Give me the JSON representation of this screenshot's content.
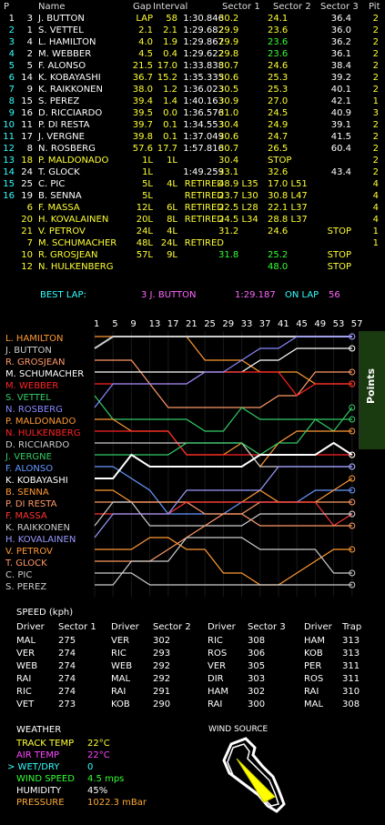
{
  "timing": {
    "headers": {
      "p": "P",
      "name": "Name",
      "gap": "Gap",
      "interval": "Interval",
      "s1": "Sector 1",
      "s2": "Sector 2",
      "s3": "Sector 3",
      "pit": "Pit"
    },
    "rows": [
      {
        "p": "1",
        "num": "3",
        "name": "J. BUTTON",
        "gap": "LAP",
        "int": "58",
        "lap": "1:30.846",
        "s1": "30.2",
        "s2": "24.1",
        "s3": "36.4",
        "pit": "2",
        "c": {
          "p": "white",
          "name": "white",
          "gap": "yellow",
          "int": "yellow",
          "lap": "white",
          "s1": "yellow",
          "s2": "yellow",
          "s3": "white",
          "pit": "yellow"
        }
      },
      {
        "p": "2",
        "num": "1",
        "name": "S. VETTEL",
        "gap": "2.1",
        "int": "2.1",
        "lap": "1:29.682",
        "s1": "29.9",
        "s2": "23.6",
        "s3": "36.0",
        "pit": "2",
        "c": {
          "p": "cyan",
          "name": "white",
          "gap": "yellow",
          "int": "yellow",
          "lap": "white",
          "s1": "yellow",
          "s2": "yellow",
          "s3": "white",
          "pit": "yellow"
        }
      },
      {
        "p": "3",
        "num": "4",
        "name": "L. HAMILTON",
        "gap": "4.0",
        "int": "1.9",
        "lap": "1:29.867",
        "s1": "29.9",
        "s2": "23.6",
        "s3": "36.2",
        "pit": "2",
        "c": {
          "p": "cyan",
          "name": "white",
          "gap": "yellow",
          "int": "yellow",
          "lap": "white",
          "s1": "yellow",
          "s2": "green",
          "s3": "white",
          "pit": "yellow"
        }
      },
      {
        "p": "4",
        "num": "2",
        "name": "M. WEBBER",
        "gap": "4.5",
        "int": "0.4",
        "lap": "1:29.622",
        "s1": "29.8",
        "s2": "23.6",
        "s3": "36.1",
        "pit": "2",
        "c": {
          "p": "cyan",
          "name": "white",
          "gap": "yellow",
          "int": "yellow",
          "lap": "white",
          "s1": "yellow",
          "s2": "green",
          "s3": "white",
          "pit": "yellow"
        }
      },
      {
        "p": "5",
        "num": "5",
        "name": "F. ALONSO",
        "gap": "21.5",
        "int": "17.0",
        "lap": "1:33.838",
        "s1": "30.7",
        "s2": "24.6",
        "s3": "38.4",
        "pit": "2",
        "c": {
          "p": "cyan",
          "name": "white",
          "gap": "yellow",
          "int": "yellow",
          "lap": "white",
          "s1": "yellow",
          "s2": "yellow",
          "s3": "white",
          "pit": "yellow"
        }
      },
      {
        "p": "6",
        "num": "14",
        "name": "K. KOBAYASHI",
        "gap": "36.7",
        "int": "15.2",
        "lap": "1:35.335",
        "s1": "30.6",
        "s2": "25.3",
        "s3": "39.2",
        "pit": "2",
        "c": {
          "p": "cyan",
          "name": "white",
          "gap": "yellow",
          "int": "yellow",
          "lap": "white",
          "s1": "yellow",
          "s2": "yellow",
          "s3": "white",
          "pit": "yellow"
        }
      },
      {
        "p": "7",
        "num": "9",
        "name": "K. RAIKKONEN",
        "gap": "38.0",
        "int": "1.2",
        "lap": "1:36.023",
        "s1": "30.5",
        "s2": "25.3",
        "s3": "40.1",
        "pit": "2",
        "c": {
          "p": "cyan",
          "name": "white",
          "gap": "yellow",
          "int": "yellow",
          "lap": "white",
          "s1": "yellow",
          "s2": "yellow",
          "s3": "white",
          "pit": "yellow"
        }
      },
      {
        "p": "8",
        "num": "15",
        "name": "S. PEREZ",
        "gap": "39.4",
        "int": "1.4",
        "lap": "1:40.163",
        "s1": "30.9",
        "s2": "27.0",
        "s3": "42.1",
        "pit": "1",
        "c": {
          "p": "cyan",
          "name": "white",
          "gap": "yellow",
          "int": "yellow",
          "lap": "white",
          "s1": "yellow",
          "s2": "yellow",
          "s3": "white",
          "pit": "yellow"
        }
      },
      {
        "p": "9",
        "num": "16",
        "name": "D. RICCIARDO",
        "gap": "39.5",
        "int": "0.0",
        "lap": "1:36.576",
        "s1": "31.0",
        "s2": "24.5",
        "s3": "40.9",
        "pit": "3",
        "c": {
          "p": "cyan",
          "name": "white",
          "gap": "yellow",
          "int": "yellow",
          "lap": "white",
          "s1": "yellow",
          "s2": "yellow",
          "s3": "white",
          "pit": "yellow"
        }
      },
      {
        "p": "10",
        "num": "11",
        "name": "P. DI RESTA",
        "gap": "39.7",
        "int": "0.1",
        "lap": "1:34.553",
        "s1": "30.4",
        "s2": "24.9",
        "s3": "39.1",
        "pit": "2",
        "c": {
          "p": "cyan",
          "name": "white",
          "gap": "yellow",
          "int": "yellow",
          "lap": "white",
          "s1": "yellow",
          "s2": "yellow",
          "s3": "white",
          "pit": "yellow"
        }
      },
      {
        "p": "11",
        "num": "17",
        "name": "J. VERGNE",
        "gap": "39.8",
        "int": "0.1",
        "lap": "1:37.049",
        "s1": "30.6",
        "s2": "24.7",
        "s3": "41.5",
        "pit": "2",
        "c": {
          "p": "cyan",
          "name": "white",
          "gap": "yellow",
          "int": "yellow",
          "lap": "white",
          "s1": "yellow",
          "s2": "yellow",
          "s3": "white",
          "pit": "yellow"
        }
      },
      {
        "p": "12",
        "num": "8",
        "name": "N. ROSBERG",
        "gap": "57.6",
        "int": "17.7",
        "lap": "1:57.816",
        "s1": "30.7",
        "s2": "26.5",
        "s3": "60.4",
        "pit": "2",
        "c": {
          "p": "cyan",
          "name": "white",
          "gap": "yellow",
          "int": "yellow",
          "lap": "white",
          "s1": "yellow",
          "s2": "yellow",
          "s3": "white",
          "pit": "yellow"
        }
      },
      {
        "p": "13",
        "num": "18",
        "name": "P. MALDONADO",
        "gap": "1L",
        "int": "1L",
        "lap": "",
        "s1": "30.4",
        "s2": "STOP",
        "s3": "",
        "pit": "2",
        "c": {
          "p": "cyan",
          "name": "yellow",
          "gap": "yellow",
          "int": "yellow",
          "lap": "white",
          "s1": "yellow",
          "s2": "yellow",
          "s3": "white",
          "pit": "yellow"
        }
      },
      {
        "p": "14",
        "num": "24",
        "name": "T. GLOCK",
        "gap": "1L",
        "int": "",
        "lap": "1:49.259",
        "s1": "33.1",
        "s2": "32.6",
        "s3": "43.4",
        "pit": "2",
        "c": {
          "p": "cyan",
          "name": "white",
          "gap": "yellow",
          "int": "yellow",
          "lap": "white",
          "s1": "yellow",
          "s2": "yellow",
          "s3": "white",
          "pit": "yellow"
        }
      },
      {
        "p": "15",
        "num": "25",
        "name": "C. PIC",
        "gap": "5L",
        "int": "4L",
        "lap": "RETIRED",
        "s1": "48.9 L35",
        "s2": "17.0 L51",
        "s3": "",
        "pit": "4",
        "c": {
          "p": "cyan",
          "name": "white",
          "gap": "yellow",
          "int": "yellow",
          "lap": "yellow",
          "s1": "yellow",
          "s2": "yellow",
          "s3": "white",
          "pit": "yellow"
        }
      },
      {
        "p": "16",
        "num": "19",
        "name": "B. SENNA",
        "gap": "5L",
        "int": "",
        "lap": "RETIRED",
        "s1": "23.7 L30",
        "s2": "30.8 L47",
        "s3": "",
        "pit": "4",
        "c": {
          "p": "cyan",
          "name": "white",
          "gap": "yellow",
          "int": "yellow",
          "lap": "yellow",
          "s1": "yellow",
          "s2": "yellow",
          "s3": "white",
          "pit": "yellow"
        }
      },
      {
        "p": "",
        "num": "6",
        "name": "F. MASSA",
        "gap": "12L",
        "int": "6L",
        "lap": "RETIRED",
        "s1": "22.5 L28",
        "s2": "22.1 L37",
        "s3": "",
        "pit": "4",
        "c": {
          "p": "cyan",
          "name": "yellow",
          "gap": "yellow",
          "int": "yellow",
          "lap": "yellow",
          "s1": "yellow",
          "s2": "yellow",
          "s3": "white",
          "pit": "yellow"
        }
      },
      {
        "p": "",
        "num": "20",
        "name": "H. KOVALAINEN",
        "gap": "20L",
        "int": "8L",
        "lap": "RETIRED",
        "s1": "24.5 L34",
        "s2": "28.8 L37",
        "s3": "",
        "pit": "4",
        "c": {
          "p": "cyan",
          "name": "yellow",
          "gap": "yellow",
          "int": "yellow",
          "lap": "yellow",
          "s1": "yellow",
          "s2": "yellow",
          "s3": "white",
          "pit": "yellow"
        }
      },
      {
        "p": "",
        "num": "21",
        "name": "V. PETROV",
        "gap": "24L",
        "int": "4L",
        "lap": "",
        "s1": "31.2",
        "s2": "24.6",
        "s3": "STOP",
        "pit": "1",
        "c": {
          "p": "cyan",
          "name": "yellow",
          "gap": "yellow",
          "int": "yellow",
          "lap": "white",
          "s1": "yellow",
          "s2": "yellow",
          "s3": "yellow",
          "pit": "yellow"
        }
      },
      {
        "p": "",
        "num": "7",
        "name": "M. SCHUMACHER",
        "gap": "48L",
        "int": "24L",
        "lap": "RETIRED",
        "s1": "",
        "s2": "",
        "s3": "",
        "pit": "1",
        "c": {
          "p": "cyan",
          "name": "yellow",
          "gap": "yellow",
          "int": "yellow",
          "lap": "yellow",
          "s1": "yellow",
          "s2": "yellow",
          "s3": "white",
          "pit": "yellow"
        }
      },
      {
        "p": "",
        "num": "10",
        "name": "R. GROSJEAN",
        "gap": "57L",
        "int": "9L",
        "lap": "",
        "s1": "31.8",
        "s2": "25.2",
        "s3": "STOP",
        "pit": "",
        "c": {
          "p": "cyan",
          "name": "yellow",
          "gap": "yellow",
          "int": "yellow",
          "lap": "white",
          "s1": "green",
          "s2": "green",
          "s3": "yellow",
          "pit": "yellow"
        }
      },
      {
        "p": "",
        "num": "12",
        "name": "N. HULKENBERG",
        "gap": "",
        "int": "",
        "lap": "",
        "s1": "",
        "s2": "48.0",
        "s3": "STOP",
        "pit": "",
        "c": {
          "p": "cyan",
          "name": "yellow",
          "gap": "yellow",
          "int": "yellow",
          "lap": "white",
          "s1": "yellow",
          "s2": "green",
          "s3": "yellow",
          "pit": "yellow"
        }
      }
    ]
  },
  "best_lap": {
    "label": "BEST LAP:",
    "driver": "3 J. BUTTON",
    "time": "1:29.187",
    "on_lap_label": "ON LAP",
    "lap": "56"
  },
  "chart": {
    "tick_labels": [
      "1",
      "5",
      "9",
      "13",
      "17",
      "21",
      "25",
      "29",
      "33",
      "37",
      "41",
      "45",
      "49",
      "53",
      "57"
    ],
    "side_tab": "Points",
    "drivers": [
      {
        "name": "L. HAMILTON",
        "color": "#ff9933"
      },
      {
        "name": "J. BUTTON",
        "color": "#cccccc"
      },
      {
        "name": "R. GROSJEAN",
        "color": "#ff9966"
      },
      {
        "name": "M. SCHUMACHER",
        "color": "#ffffff"
      },
      {
        "name": "M. WEBBER",
        "color": "#ff2222"
      },
      {
        "name": "S. VETTEL",
        "color": "#33cc66"
      },
      {
        "name": "N. ROSBERG",
        "color": "#8888ff"
      },
      {
        "name": "P. MALDONADO",
        "color": "#ff9933"
      },
      {
        "name": "N. HULKENBERG",
        "color": "#ff2222"
      },
      {
        "name": "D. RICCIARDO",
        "color": "#cccccc"
      },
      {
        "name": "J. VERGNE",
        "color": "#33cc66"
      },
      {
        "name": "F. ALONSO",
        "color": "#6699ff"
      },
      {
        "name": "K. KOBAYASHI",
        "color": "#ffffff"
      },
      {
        "name": "B. SENNA",
        "color": "#ff9933"
      },
      {
        "name": "P. DI RESTA",
        "color": "#ff9966"
      },
      {
        "name": "F. MASSA",
        "color": "#ff3333"
      },
      {
        "name": "K. RAIKKONEN",
        "color": "#cccccc"
      },
      {
        "name": "H. KOVALAINEN",
        "color": "#9999ff"
      },
      {
        "name": "V. PETROV",
        "color": "#ff9933"
      },
      {
        "name": "T. GLOCK",
        "color": "#ff9966"
      },
      {
        "name": "C. PIC",
        "color": "#cccccc"
      },
      {
        "name": "S. PEREZ",
        "color": "#cccccc"
      }
    ]
  },
  "speed": {
    "title": "SPEED (kph)",
    "headers": [
      "Driver",
      "Sector 1",
      "Driver",
      "Sector 2",
      "Driver",
      "Sector 3",
      "Driver",
      "Trap"
    ],
    "rows": [
      [
        "MAL",
        "275",
        "VER",
        "302",
        "RIC",
        "308",
        "HAM",
        "313"
      ],
      [
        "VER",
        "274",
        "RIC",
        "293",
        "ROS",
        "306",
        "KOB",
        "313"
      ],
      [
        "WEB",
        "274",
        "WEB",
        "292",
        "VER",
        "305",
        "PER",
        "311"
      ],
      [
        "RAI",
        "274",
        "MAL",
        "292",
        "DIR",
        "303",
        "ROS",
        "311"
      ],
      [
        "RIC",
        "274",
        "RAI",
        "291",
        "HAM",
        "302",
        "RAI",
        "310"
      ],
      [
        "VET",
        "273",
        "KOB",
        "290",
        "RAI",
        "300",
        "MAL",
        "308"
      ]
    ]
  },
  "weather": {
    "title": "WEATHER",
    "wind_title": "WIND SOURCE",
    "items": [
      {
        "label": "TRACK TEMP",
        "value": "22°C",
        "color": "#ffff33",
        "vcolor": "#ffff33"
      },
      {
        "label": "AIR TEMP",
        "value": "22°C",
        "color": "#ff44ff",
        "vcolor": "#ff44ff"
      },
      {
        "label": "> WET/DRY",
        "value": "0",
        "color": "#33ffff",
        "vcolor": "#33ffff"
      },
      {
        "label": "WIND SPEED",
        "value": "4.5 mps",
        "color": "#33ff33",
        "vcolor": "#33ff33"
      },
      {
        "label": "HUMIDITY",
        "value": "45%",
        "color": "#ffffff",
        "vcolor": "#ffffff"
      },
      {
        "label": "PRESSURE",
        "value": "1022.3 mBar",
        "color": "#ffaa33",
        "vcolor": "#ffaa33"
      }
    ]
  }
}
